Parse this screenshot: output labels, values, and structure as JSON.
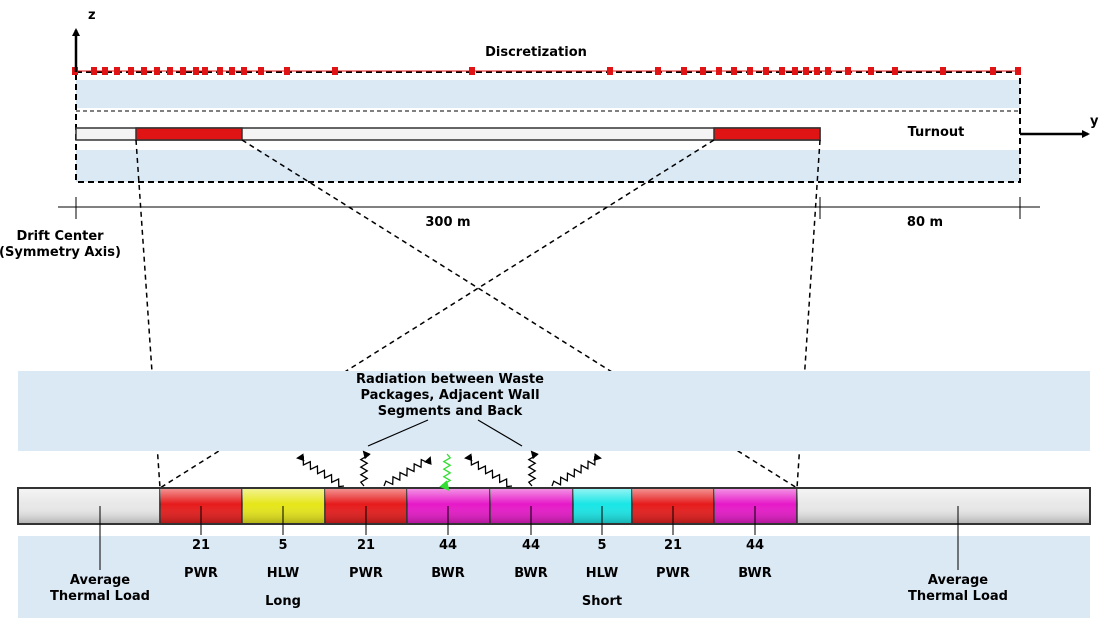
{
  "axes": {
    "z": "z",
    "y": "y"
  },
  "discretization_label": "Discretization",
  "turnout_label": "Turnout",
  "dim_main": "300 m",
  "dim_turnout": "80 m",
  "drift_center": [
    "Drift Center",
    "(Symmetry Axis)"
  ],
  "radiation_label": [
    "Radiation between Waste",
    "Packages,  Adjacent Wall",
    "Segments and Back"
  ],
  "segments": [
    {
      "lines": [
        "Average",
        "Thermal Load"
      ],
      "color": "#e8e8e8"
    },
    {
      "lines": [
        "21",
        "PWR"
      ],
      "color": "#e61b1b"
    },
    {
      "lines": [
        "5",
        "HLW",
        "Long"
      ],
      "color": "#e6e619"
    },
    {
      "lines": [
        "21",
        "PWR"
      ],
      "color": "#e61b1b"
    },
    {
      "lines": [
        "44",
        "BWR"
      ],
      "color": "#e619c8"
    },
    {
      "lines": [
        "44",
        "BWR"
      ],
      "color": "#e619c8"
    },
    {
      "lines": [
        "5",
        "HLW",
        "Short"
      ],
      "color": "#19e6e6"
    },
    {
      "lines": [
        "21",
        "PWR"
      ],
      "color": "#e61b1b"
    },
    {
      "lines": [
        "44",
        "BWR"
      ],
      "color": "#e619c8"
    },
    {
      "lines": [
        "Average",
        "Thermal Load"
      ],
      "color": "#e8e8e8"
    }
  ],
  "colors": {
    "red_section": "#e01414",
    "mesh": "#e01414",
    "water": "#dbe9f5",
    "green_arrow": "#33dd33"
  }
}
